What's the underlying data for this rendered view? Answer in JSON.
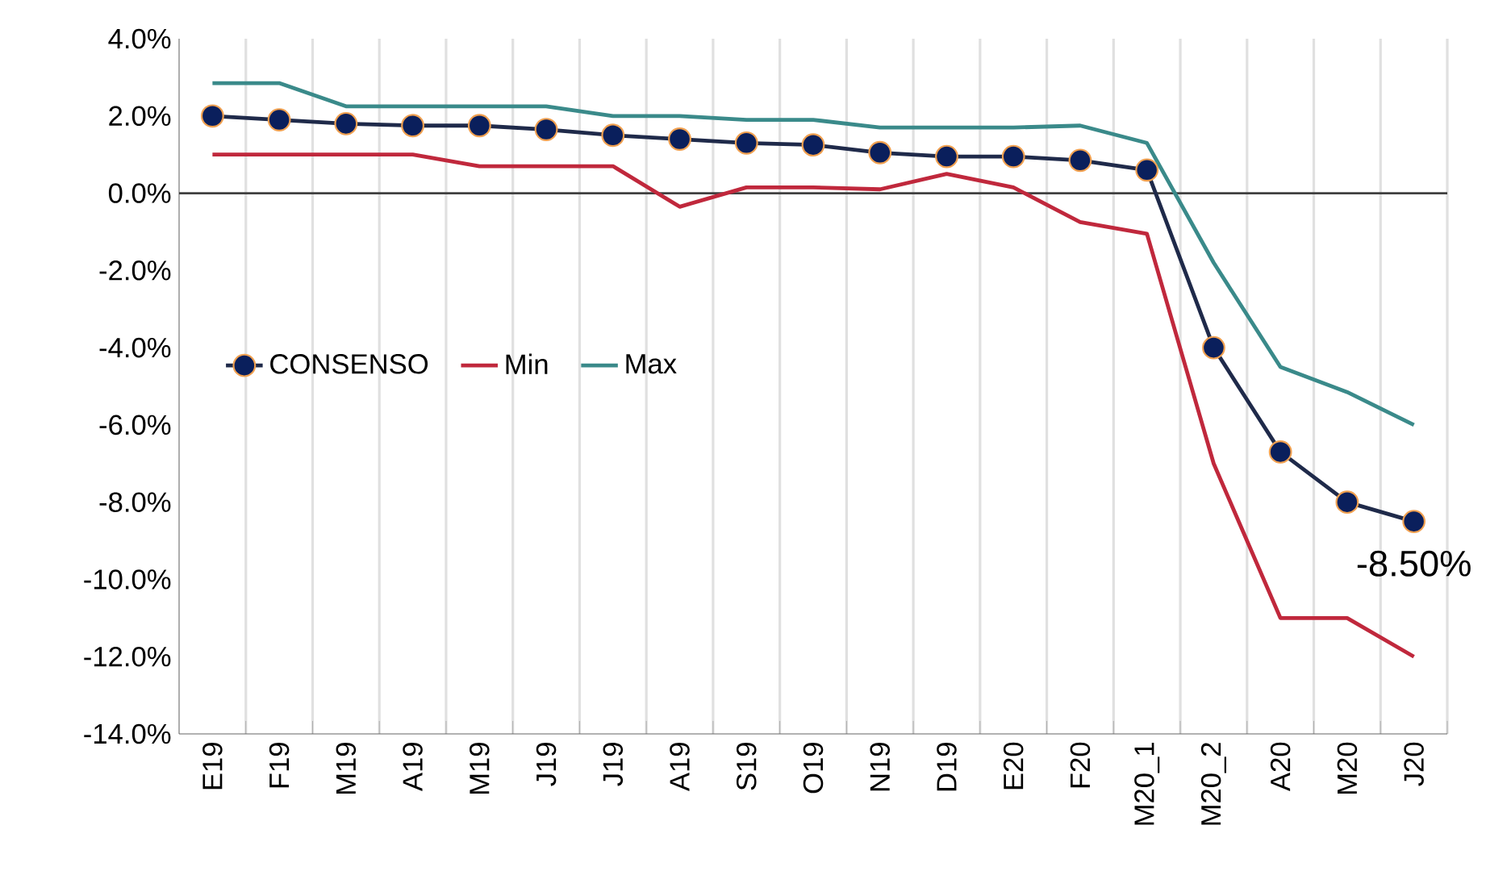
{
  "chart_data": {
    "type": "line",
    "categories": [
      "E19",
      "F19",
      "M19",
      "A19",
      "M19",
      "J19",
      "J19",
      "A19",
      "S19",
      "O19",
      "N19",
      "D19",
      "E20",
      "F20",
      "M20_1",
      "M20_2",
      "A20",
      "M20",
      "J20"
    ],
    "series": [
      {
        "name": "CONSENSO",
        "color": "#1f2a4a",
        "marker": "circle",
        "values": [
          2.0,
          1.9,
          1.8,
          1.75,
          1.75,
          1.65,
          1.5,
          1.4,
          1.3,
          1.25,
          1.05,
          0.95,
          0.95,
          0.85,
          0.6,
          -4.0,
          -6.7,
          -8.0,
          -8.5
        ]
      },
      {
        "name": "Min",
        "color": "#c0283c",
        "marker": "none",
        "values": [
          1.0,
          1.0,
          1.0,
          1.0,
          0.7,
          0.7,
          0.7,
          -0.35,
          0.15,
          0.15,
          0.1,
          0.5,
          0.15,
          -0.75,
          -1.05,
          -7.0,
          -11.0,
          -11.0,
          -12.0
        ]
      },
      {
        "name": "Max",
        "color": "#3a8a8a",
        "marker": "none",
        "values": [
          2.85,
          2.85,
          2.25,
          2.25,
          2.25,
          2.25,
          2.0,
          2.0,
          1.9,
          1.9,
          1.7,
          1.7,
          1.7,
          1.75,
          1.3,
          -1.8,
          -4.5,
          -5.15,
          -6.0
        ]
      }
    ],
    "ylim": [
      -14,
      4
    ],
    "yticks": [
      {
        "value": -14,
        "label": "-14.0%"
      },
      {
        "value": -12,
        "label": "-12.0%"
      },
      {
        "value": -10,
        "label": "-10.0%"
      },
      {
        "value": -8,
        "label": "-8.0%"
      },
      {
        "value": -6,
        "label": "-6.0%"
      },
      {
        "value": -4,
        "label": "-4.0%"
      },
      {
        "value": -2,
        "label": "-2.0%"
      },
      {
        "value": 0,
        "label": "0.0%"
      },
      {
        "value": 2,
        "label": "2.0%"
      },
      {
        "value": 4,
        "label": "4.0%"
      }
    ],
    "ref_lines": [
      {
        "axis": "y",
        "value": 0,
        "color": "#404040"
      }
    ],
    "annotations": [
      {
        "text": "-8.50%",
        "x": "J20",
        "y": -8.5
      }
    ],
    "grid": "x",
    "legend": "left",
    "line_style": "solid"
  }
}
